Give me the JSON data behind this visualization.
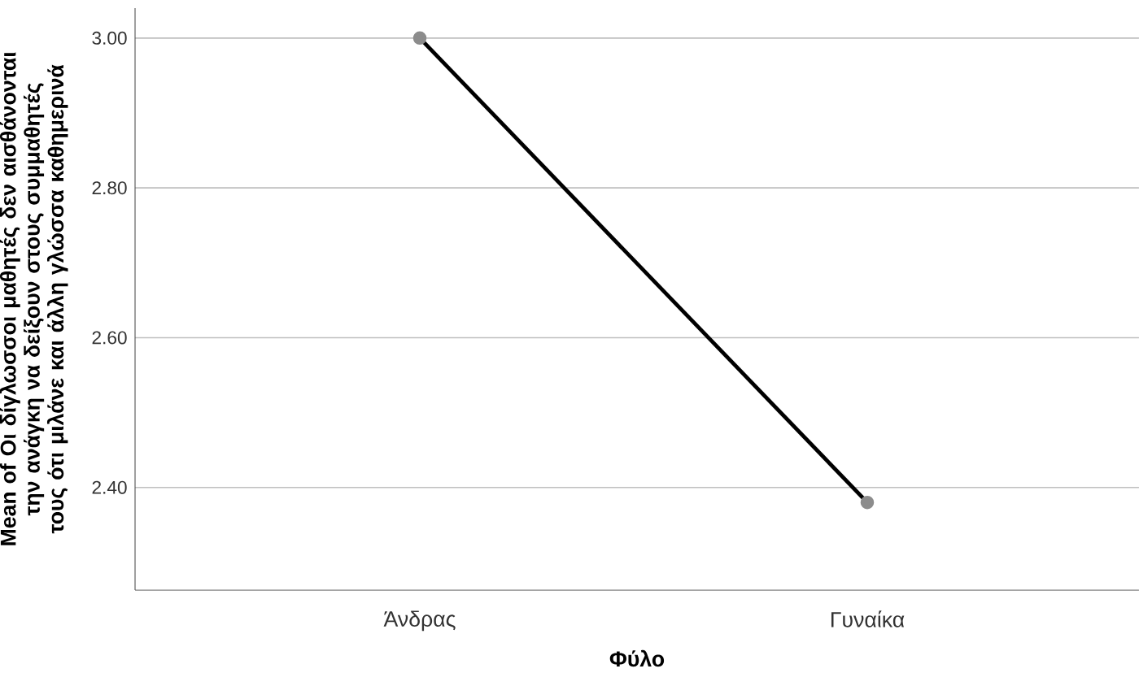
{
  "chart_data": {
    "type": "line",
    "xlabel": "Φύλο",
    "ylabel": "Mean of Οι δίγλωσσοι μαθητές δεν αισθάνονται την ανάγκη να δείξουν στους συμμαθητές τους ότι μιλάνε και άλλη γλώσσα καθημερινά",
    "categories": [
      "Άνδρας",
      "Γυναίκα"
    ],
    "series": [
      {
        "color": "#000000",
        "values": [
          3.0,
          2.38
        ]
      }
    ],
    "ylim": [
      2.263,
      3.04
    ],
    "yticks": [
      {
        "value": 2.4,
        "label": "2.40"
      },
      {
        "value": 2.6,
        "label": "2.60"
      },
      {
        "value": 2.8,
        "label": "2.80"
      },
      {
        "value": 3.0,
        "label": "3.00"
      }
    ],
    "grid": "y",
    "marker": "circle",
    "line_style": "solid"
  }
}
